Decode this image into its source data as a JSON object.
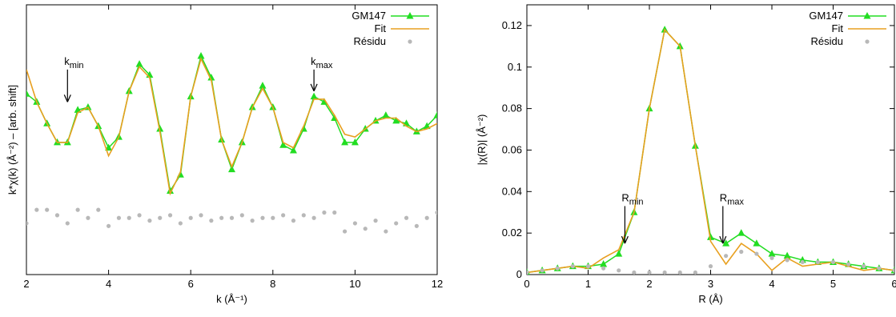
{
  "chart_data": [
    {
      "type": "line",
      "xlabel": "k (Å⁻¹)",
      "ylabel": "k*χ(k) (Å⁻²) – [arb. shift]",
      "xlim": [
        2,
        12
      ],
      "ylim": [
        -2.5,
        2.5
      ],
      "x_ticks": [
        2,
        4,
        6,
        8,
        10,
        12
      ],
      "x_tick_labels": [
        "2",
        "4",
        "6",
        "8",
        "10",
        "12"
      ],
      "y_tick_labels_shown": false,
      "grid": false,
      "legend": "top-right",
      "series": [
        {
          "name": "GM147",
          "color": "#22dd22",
          "marker": "triangle",
          "x": [
            2.0,
            2.25,
            2.5,
            2.75,
            3.0,
            3.25,
            3.5,
            3.75,
            4.0,
            4.25,
            4.5,
            4.75,
            5.0,
            5.25,
            5.5,
            5.75,
            6.0,
            6.25,
            6.5,
            6.75,
            7.0,
            7.25,
            7.5,
            7.75,
            8.0,
            8.25,
            8.5,
            8.75,
            9.0,
            9.25,
            9.5,
            9.75,
            10.0,
            10.25,
            10.5,
            10.75,
            11.0,
            11.25,
            11.5,
            11.75,
            12.0
          ],
          "y": [
            0.85,
            0.7,
            0.3,
            -0.05,
            -0.05,
            0.55,
            0.6,
            0.25,
            -0.15,
            0.05,
            0.9,
            1.4,
            1.2,
            0.2,
            -0.95,
            -0.65,
            0.8,
            1.55,
            1.15,
            0.0,
            -0.55,
            -0.05,
            0.6,
            1.0,
            0.6,
            -0.1,
            -0.2,
            0.2,
            0.8,
            0.7,
            0.4,
            -0.05,
            -0.05,
            0.2,
            0.35,
            0.45,
            0.35,
            0.3,
            0.15,
            0.25,
            0.45
          ]
        },
        {
          "name": "Fit",
          "color": "#e8a020",
          "marker": "none",
          "x": [
            2.0,
            2.25,
            2.5,
            2.75,
            3.0,
            3.25,
            3.5,
            3.75,
            4.0,
            4.25,
            4.5,
            4.75,
            5.0,
            5.25,
            5.5,
            5.75,
            6.0,
            6.25,
            6.5,
            6.75,
            7.0,
            7.25,
            7.5,
            7.75,
            8.0,
            8.25,
            8.5,
            8.75,
            9.0,
            9.25,
            9.5,
            9.75,
            10.0,
            10.25,
            10.5,
            10.75,
            11.0,
            11.25,
            11.5,
            11.75,
            12.0
          ],
          "y": [
            1.3,
            0.7,
            0.3,
            -0.05,
            -0.05,
            0.5,
            0.6,
            0.25,
            -0.3,
            0.05,
            0.9,
            1.35,
            1.15,
            0.15,
            -1.0,
            -0.6,
            0.8,
            1.5,
            1.1,
            0.0,
            -0.5,
            -0.05,
            0.6,
            0.95,
            0.6,
            -0.05,
            -0.15,
            0.25,
            0.75,
            0.75,
            0.45,
            0.1,
            0.05,
            0.2,
            0.35,
            0.4,
            0.4,
            0.25,
            0.15,
            0.2,
            0.3
          ]
        },
        {
          "name": "Résidu",
          "color": "#b8b8b8",
          "marker": "circle",
          "x": [
            2.0,
            2.25,
            2.5,
            2.75,
            3.0,
            3.25,
            3.5,
            3.75,
            4.0,
            4.25,
            4.5,
            4.75,
            5.0,
            5.25,
            5.5,
            5.75,
            6.0,
            6.25,
            6.5,
            6.75,
            7.0,
            7.25,
            7.5,
            7.75,
            8.0,
            8.25,
            8.5,
            8.75,
            9.0,
            9.25,
            9.5,
            9.75,
            10.0,
            10.25,
            10.5,
            10.75,
            11.0,
            11.25,
            11.5,
            11.75,
            12.0
          ],
          "y": [
            -1.55,
            -1.3,
            -1.3,
            -1.4,
            -1.55,
            -1.3,
            -1.45,
            -1.3,
            -1.6,
            -1.45,
            -1.45,
            -1.4,
            -1.5,
            -1.45,
            -1.4,
            -1.55,
            -1.45,
            -1.4,
            -1.5,
            -1.45,
            -1.45,
            -1.4,
            -1.5,
            -1.45,
            -1.45,
            -1.4,
            -1.5,
            -1.4,
            -1.45,
            -1.35,
            -1.35,
            -1.7,
            -1.55,
            -1.65,
            -1.5,
            -1.7,
            -1.55,
            -1.45,
            -1.6,
            -1.45,
            -1.35
          ]
        }
      ],
      "annotations": [
        {
          "text_main": "k",
          "text_sub": "min",
          "x": 3.0,
          "y": 1.3,
          "arrow_to_y": 0.7
        },
        {
          "text_main": "k",
          "text_sub": "max",
          "x": 9.0,
          "y": 1.3,
          "arrow_to_y": 0.9
        }
      ]
    },
    {
      "type": "line",
      "xlabel": "R (Å)",
      "ylabel": "|χ(R)| (Å⁻²)",
      "xlim": [
        0,
        6
      ],
      "ylim": [
        0,
        0.13
      ],
      "x_ticks": [
        0,
        1,
        2,
        3,
        4,
        5,
        6
      ],
      "x_tick_labels": [
        "0",
        "1",
        "2",
        "3",
        "4",
        "5",
        "6"
      ],
      "y_ticks": [
        0,
        0.02,
        0.04,
        0.06,
        0.08,
        0.1,
        0.12
      ],
      "y_tick_labels": [
        "0",
        "0.02",
        "0.04",
        "0.06",
        "0.08",
        "0.1",
        "0.12"
      ],
      "grid": false,
      "legend": "top-right",
      "series": [
        {
          "name": "GM147",
          "color": "#22dd22",
          "marker": "triangle",
          "x": [
            0.0,
            0.25,
            0.5,
            0.75,
            1.0,
            1.25,
            1.5,
            1.75,
            2.0,
            2.25,
            2.5,
            2.75,
            3.0,
            3.25,
            3.5,
            3.75,
            4.0,
            4.25,
            4.5,
            4.75,
            5.0,
            5.25,
            5.5,
            5.75,
            6.0
          ],
          "y": [
            0.001,
            0.002,
            0.003,
            0.004,
            0.004,
            0.005,
            0.01,
            0.03,
            0.08,
            0.118,
            0.11,
            0.062,
            0.018,
            0.015,
            0.02,
            0.015,
            0.01,
            0.009,
            0.007,
            0.006,
            0.006,
            0.005,
            0.004,
            0.003,
            0.002
          ]
        },
        {
          "name": "Fit",
          "color": "#e8a020",
          "marker": "none",
          "x": [
            0.0,
            0.25,
            0.5,
            0.75,
            1.0,
            1.25,
            1.5,
            1.75,
            2.0,
            2.25,
            2.5,
            2.75,
            3.0,
            3.25,
            3.5,
            3.75,
            4.0,
            4.25,
            4.5,
            4.75,
            5.0,
            5.25,
            5.5,
            5.75,
            6.0
          ],
          "y": [
            0.001,
            0.002,
            0.003,
            0.004,
            0.003,
            0.008,
            0.012,
            0.03,
            0.08,
            0.118,
            0.11,
            0.062,
            0.016,
            0.005,
            0.015,
            0.01,
            0.002,
            0.008,
            0.004,
            0.005,
            0.006,
            0.004,
            0.002,
            0.003,
            0.002
          ]
        },
        {
          "name": "Résidu",
          "color": "#b8b8b8",
          "marker": "circle",
          "x": [
            0.0,
            0.25,
            0.5,
            0.75,
            1.0,
            1.25,
            1.5,
            1.75,
            2.0,
            2.25,
            2.5,
            2.75,
            3.0,
            3.25,
            3.5,
            3.75,
            4.0,
            4.25,
            4.5,
            4.75,
            5.0,
            5.25,
            5.5,
            5.75,
            6.0
          ],
          "y": [
            0.001,
            0.002,
            0.003,
            0.004,
            0.004,
            0.003,
            0.002,
            0.001,
            0.001,
            0.001,
            0.001,
            0.001,
            0.004,
            0.009,
            0.011,
            0.01,
            0.008,
            0.007,
            0.006,
            0.006,
            0.006,
            0.005,
            0.004,
            0.003,
            0.002
          ]
        }
      ],
      "annotations": [
        {
          "text_main": "R",
          "text_sub": "min",
          "x": 1.6,
          "y": 0.033,
          "arrow_to_y": 0.015
        },
        {
          "text_main": "R",
          "text_sub": "max",
          "x": 3.2,
          "y": 0.033,
          "arrow_to_y": 0.015
        }
      ]
    }
  ]
}
